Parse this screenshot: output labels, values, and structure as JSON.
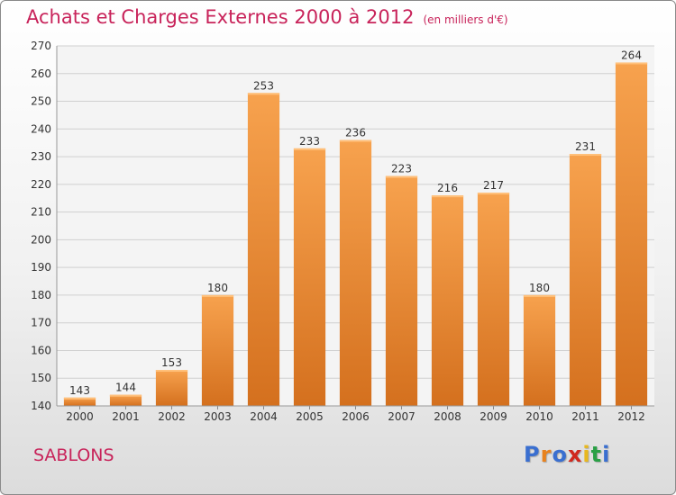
{
  "header": {
    "title": "Achats et Charges Externes 2000 à 2012",
    "unit": "(en milliers d'€)"
  },
  "footer": {
    "place": "SABLONS",
    "logo_text": "Proxiti",
    "logo_colors": [
      "#3a6fd0",
      "#e8821e",
      "#3a6fd0",
      "#d0281e",
      "#e8b81e",
      "#2aa046",
      "#3a6fd0"
    ]
  },
  "colors": {
    "title": "#c8235a",
    "bar_light": "#f7a24e",
    "bar_dark": "#d4701e",
    "grid": "#d0d0d0",
    "axis_text": "#333333"
  },
  "chart_data": {
    "type": "bar",
    "categories": [
      "2000",
      "2001",
      "2002",
      "2003",
      "2004",
      "2005",
      "2006",
      "2007",
      "2008",
      "2009",
      "2010",
      "2011",
      "2012"
    ],
    "values": [
      143,
      144,
      153,
      180,
      253,
      233,
      236,
      223,
      216,
      217,
      180,
      231,
      264
    ],
    "data_labels": [
      "143",
      "144",
      "153",
      "180",
      "253",
      "233",
      "236",
      "223",
      "216",
      "217",
      "180",
      "231",
      "264"
    ],
    "ylim": [
      140,
      270
    ],
    "yticks": [
      140,
      150,
      160,
      170,
      180,
      190,
      200,
      210,
      220,
      230,
      240,
      250,
      260,
      270
    ],
    "grid": true,
    "title": "Achats et Charges Externes 2000 à 2012",
    "xlabel": "",
    "ylabel": ""
  }
}
